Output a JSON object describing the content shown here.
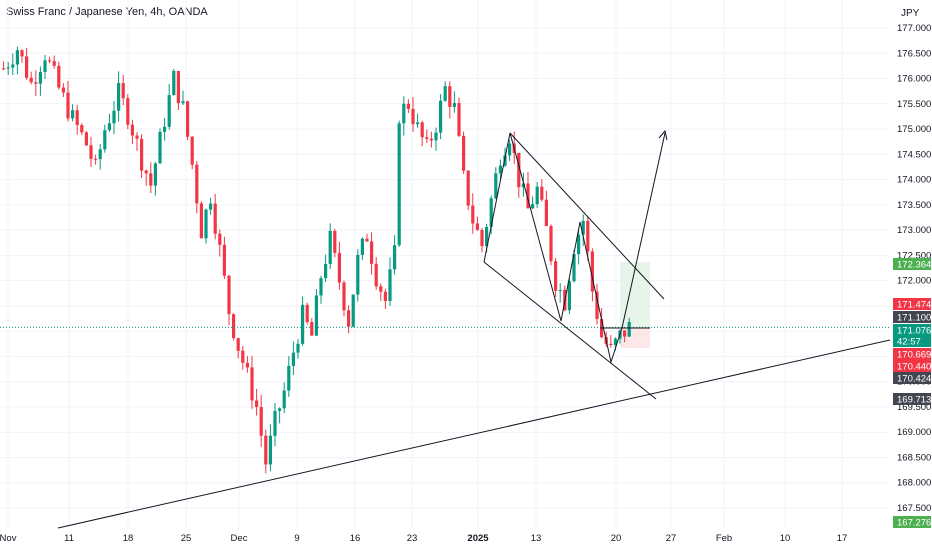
{
  "header": {
    "title": "Swiss Franc / Japanese Yen, 4h, OANDA",
    "currency": "JPY"
  },
  "colors": {
    "up": "#089981",
    "down": "#f23645",
    "grid": "#f0f3fa",
    "drawing": "#131722",
    "target_zone": "#e6f4ea",
    "stop_zone": "#fde7e9",
    "last_price_line": "#089981"
  },
  "chart_data": {
    "type": "candlestick",
    "symbol": "CHFJPY",
    "timeframe": "4h",
    "broker": "OANDA",
    "y_range": [
      167.3,
      177.05
    ],
    "grid": true,
    "y_ticks": [
      "177.000",
      "176.500",
      "176.000",
      "175.500",
      "175.000",
      "174.500",
      "174.000",
      "173.500",
      "173.000",
      "172.500",
      "172.000",
      "171.500",
      "171.000",
      "170.500",
      "170.000",
      "169.500",
      "169.000",
      "168.500",
      "168.000",
      "167.500"
    ],
    "x_ticks": [
      {
        "label": "Nov",
        "bold": false
      },
      {
        "label": "11",
        "bold": false
      },
      {
        "label": "18",
        "bold": false
      },
      {
        "label": "25",
        "bold": false
      },
      {
        "label": "Dec",
        "bold": false
      },
      {
        "label": "9",
        "bold": false
      },
      {
        "label": "16",
        "bold": false
      },
      {
        "label": "23",
        "bold": false
      },
      {
        "label": "2025",
        "bold": true
      },
      {
        "label": "13",
        "bold": false
      },
      {
        "label": "20",
        "bold": false
      },
      {
        "label": "27",
        "bold": false
      },
      {
        "label": "Feb",
        "bold": false
      },
      {
        "label": "10",
        "bold": false
      },
      {
        "label": "17",
        "bold": false
      }
    ],
    "price_path_estimate": [
      [
        0,
        176.2
      ],
      [
        3,
        176.6
      ],
      [
        6,
        175.9
      ],
      [
        9,
        176.5
      ],
      [
        12,
        175.8
      ],
      [
        15,
        175.2
      ],
      [
        18,
        174.7
      ],
      [
        20,
        174.2
      ],
      [
        22,
        175.0
      ],
      [
        25,
        175.7
      ],
      [
        27,
        175.3
      ],
      [
        30,
        174.4
      ],
      [
        32,
        173.9
      ],
      [
        35,
        175.2
      ],
      [
        37,
        176.0
      ],
      [
        39,
        175.4
      ],
      [
        41,
        174.3
      ],
      [
        43,
        173.0
      ],
      [
        45,
        173.7
      ],
      [
        47,
        172.6
      ],
      [
        49,
        171.4
      ],
      [
        51,
        170.7
      ],
      [
        53,
        170.1
      ],
      [
        55,
        169.5
      ],
      [
        57,
        168.4
      ],
      [
        59,
        169.2
      ],
      [
        61,
        169.8
      ],
      [
        63,
        170.6
      ],
      [
        65,
        171.3
      ],
      [
        67,
        170.9
      ],
      [
        69,
        172.1
      ],
      [
        71,
        172.8
      ],
      [
        73,
        172.0
      ],
      [
        75,
        171.2
      ],
      [
        77,
        172.4
      ],
      [
        79,
        172.9
      ],
      [
        81,
        172.1
      ],
      [
        83,
        171.6
      ],
      [
        85,
        172.5
      ],
      [
        86,
        175.3
      ],
      [
        88,
        175.5
      ],
      [
        90,
        175.0
      ],
      [
        92,
        174.6
      ],
      [
        94,
        175.1
      ],
      [
        96,
        175.8
      ],
      [
        98,
        175.4
      ],
      [
        100,
        174.0
      ],
      [
        102,
        173.2
      ],
      [
        104,
        172.7
      ],
      [
        106,
        173.6
      ],
      [
        108,
        174.5
      ],
      [
        110,
        174.9
      ],
      [
        112,
        174.0
      ],
      [
        114,
        173.4
      ],
      [
        116,
        173.8
      ],
      [
        118,
        173.0
      ],
      [
        120,
        172.0
      ],
      [
        122,
        171.6
      ],
      [
        124,
        172.7
      ],
      [
        126,
        173.2
      ],
      [
        128,
        171.8
      ],
      [
        130,
        170.9
      ],
      [
        132,
        170.6
      ],
      [
        134,
        170.9
      ],
      [
        136,
        171.08
      ]
    ],
    "badges": [
      {
        "price": "172.364",
        "style": "target"
      },
      {
        "price": "171.474",
        "style": "stop"
      },
      {
        "price": "171.100",
        "style": "dark"
      },
      {
        "price": "171.076",
        "style": "last"
      },
      {
        "price": "42:57",
        "style": "last"
      },
      {
        "price": "170.669",
        "style": "stop"
      },
      {
        "price": "170.440",
        "style": "stop"
      },
      {
        "price": "170.424",
        "style": "dark"
      },
      {
        "price": "169.713",
        "style": "dark"
      },
      {
        "price": "167.276",
        "style": "target"
      }
    ]
  }
}
